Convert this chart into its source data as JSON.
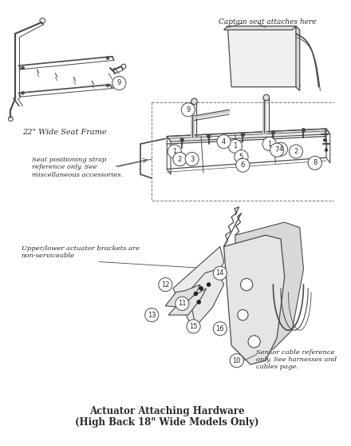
{
  "bg_color": "#ffffff",
  "line_color": "#4a4a4a",
  "text_color": "#2a2a2a",
  "fig_width": 4.4,
  "fig_height": 5.58,
  "dpi": 100,
  "top_title": "Captain seat attaches here",
  "label_22wide": "22\" Wide Seat Frame",
  "label_seat_strap": "Seat positioning strap\nreference only. See\nmiscellaneous accessories.",
  "label_upper_lower": "Upper/lower actuator brackets are\nnon-serviceable",
  "label_sensor": "Sensor cable reference\nonly. See harnesses and\ncables page.",
  "bottom_title_line1": "Actuator Attaching Hardware",
  "bottom_title_line2": "(High Back 18\" Wide Models Only)"
}
